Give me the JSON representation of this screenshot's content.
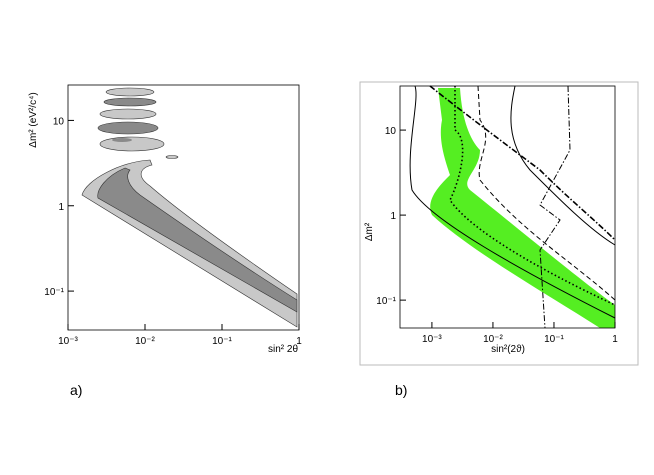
{
  "chart_data": [
    {
      "type": "contour",
      "panel_label": "a)",
      "x_label": "sin² 2θ",
      "y_label": "Δm² (eV²/c⁴)",
      "log_x": true,
      "log_y": true,
      "xlim": [
        0.001,
        1
      ],
      "ylim": [
        0.035,
        26
      ],
      "xticks": [
        {
          "value": 0.001,
          "label": "10⁻³"
        },
        {
          "value": 0.01,
          "label": "10⁻²"
        },
        {
          "value": 0.1,
          "label": "10⁻¹"
        },
        1
      ],
      "yticks": [
        {
          "value": 0.1,
          "label": "10⁻¹"
        },
        1,
        10
      ]
    },
    {
      "type": "contour",
      "panel_label": "b)",
      "x_label": "sin²(2ϑ)",
      "y_label": "Δm²",
      "log_x": true,
      "log_y": true,
      "xlim": [
        0.0003,
        1
      ],
      "ylim": [
        0.047,
        33
      ],
      "xticks": [
        {
          "value": 0.001,
          "label": "10⁻³"
        },
        {
          "value": 0.01,
          "label": "10⁻²"
        },
        {
          "value": 0.1,
          "label": "10⁻¹"
        },
        1
      ],
      "yticks": [
        {
          "value": 0.1,
          "label": "10⁻¹"
        },
        1,
        10
      ]
    }
  ]
}
